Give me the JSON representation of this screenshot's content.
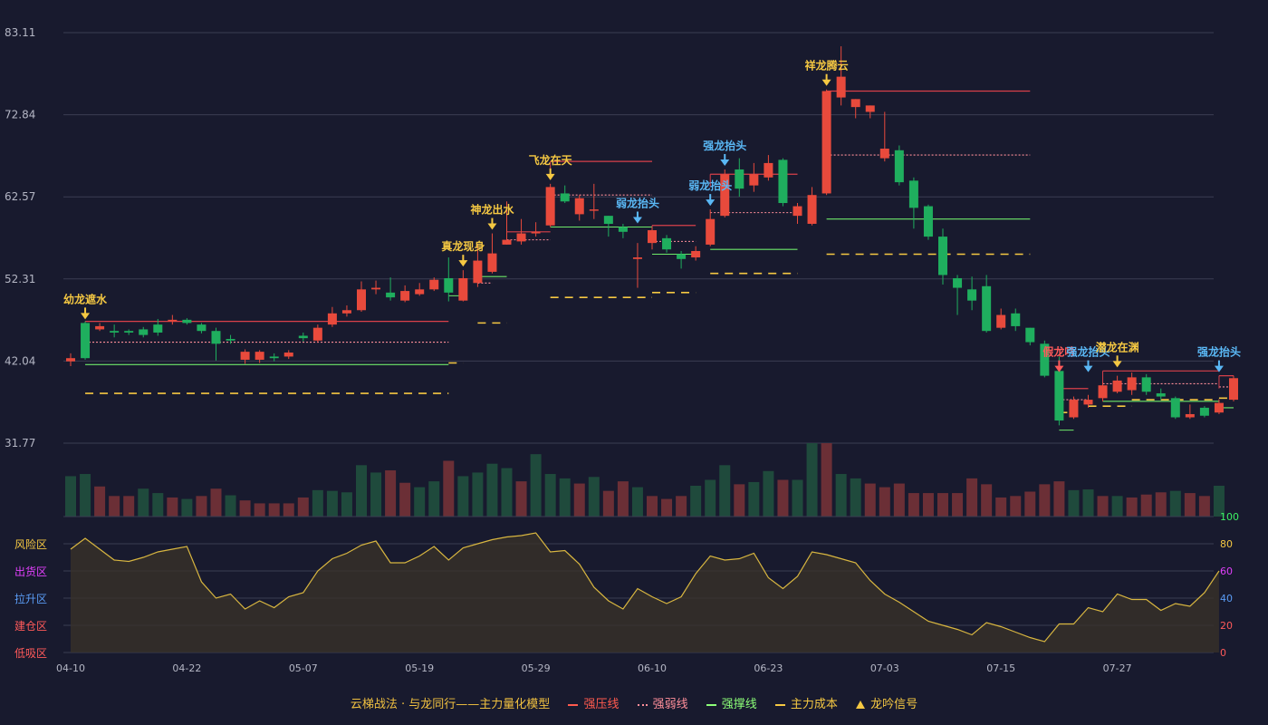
{
  "chart_data": [
    {
      "type": "candlestick",
      "ylim": [
        31.77,
        83.11
      ],
      "y_ticks": [
        "83.11",
        "72.84",
        "62.57",
        "52.31",
        "42.04",
        "31.77"
      ],
      "x_ticks": [
        {
          "index": 0,
          "label": "04-10"
        },
        {
          "index": 8,
          "label": "04-22"
        },
        {
          "index": 16,
          "label": "05-07"
        },
        {
          "index": 24,
          "label": "05-19"
        },
        {
          "index": 32,
          "label": "05-29"
        },
        {
          "index": 40,
          "label": "06-10"
        },
        {
          "index": 48,
          "label": "06-23"
        },
        {
          "index": 56,
          "label": "07-03"
        },
        {
          "index": 64,
          "label": "07-15"
        },
        {
          "index": 72,
          "label": "07-27"
        }
      ],
      "candles": [
        [
          42.0,
          42.4,
          41.4,
          43.0
        ],
        [
          46.8,
          42.4,
          42.2,
          47.0
        ],
        [
          46.0,
          46.4,
          45.8,
          46.8
        ],
        [
          45.8,
          45.6,
          45.0,
          46.6
        ],
        [
          45.8,
          45.6,
          45.3,
          46.0
        ],
        [
          46.0,
          45.3,
          45.0,
          46.3
        ],
        [
          46.6,
          45.6,
          45.2,
          47.3
        ],
        [
          47.0,
          47.2,
          46.6,
          47.8
        ],
        [
          47.2,
          46.8,
          46.6,
          47.4
        ],
        [
          46.6,
          45.8,
          45.5,
          46.8
        ],
        [
          45.8,
          44.2,
          42.1,
          46.2
        ],
        [
          44.8,
          44.6,
          44.2,
          45.3
        ],
        [
          42.2,
          43.2,
          41.7,
          43.5
        ],
        [
          42.2,
          43.2,
          41.8,
          43.4
        ],
        [
          42.6,
          42.4,
          42.0,
          43.0
        ],
        [
          42.6,
          43.1,
          42.3,
          43.4
        ],
        [
          45.2,
          44.9,
          44.5,
          45.6
        ],
        [
          44.6,
          46.2,
          44.4,
          46.6
        ],
        [
          46.6,
          48.0,
          46.3,
          48.8
        ],
        [
          48.0,
          48.4,
          47.6,
          49.0
        ],
        [
          48.4,
          51.0,
          48.2,
          52.0
        ],
        [
          51.0,
          51.2,
          50.4,
          52.1
        ],
        [
          50.6,
          50.0,
          49.6,
          52.5
        ],
        [
          49.6,
          50.8,
          49.4,
          51.5
        ],
        [
          50.4,
          51.0,
          50.2,
          51.8
        ],
        [
          51.0,
          52.2,
          50.8,
          52.5
        ],
        [
          52.4,
          50.6,
          49.5,
          55.0
        ],
        [
          49.6,
          52.4,
          49.5,
          53.4
        ],
        [
          51.8,
          54.6,
          51.3,
          56.6
        ],
        [
          53.2,
          55.5,
          53.0,
          58.0
        ],
        [
          56.6,
          57.2,
          56.6,
          62.0
        ],
        [
          57.0,
          58.0,
          56.6,
          59.8
        ],
        [
          58.0,
          58.2,
          57.6,
          59.4
        ],
        [
          59.0,
          63.8,
          58.8,
          64.2
        ],
        [
          63.0,
          62.0,
          61.8,
          64.0
        ],
        [
          60.4,
          62.4,
          59.6,
          62.8
        ],
        [
          61.0,
          61.0,
          59.8,
          64.2
        ],
        [
          60.2,
          59.2,
          57.6,
          60.2
        ],
        [
          58.8,
          58.2,
          57.4,
          59.2
        ],
        [
          54.8,
          55.0,
          51.2,
          56.8
        ],
        [
          56.8,
          58.4,
          56.0,
          58.8
        ],
        [
          57.4,
          56.0,
          55.6,
          57.8
        ],
        [
          55.4,
          54.8,
          53.6,
          55.8
        ],
        [
          55.0,
          55.8,
          54.6,
          56.4
        ],
        [
          56.6,
          59.8,
          56.4,
          61.0
        ],
        [
          60.2,
          65.4,
          60.0,
          66.0
        ],
        [
          66.0,
          63.6,
          62.6,
          67.4
        ],
        [
          64.0,
          65.4,
          63.2,
          66.8
        ],
        [
          65.0,
          66.8,
          64.6,
          67.8
        ],
        [
          67.2,
          61.8,
          61.4,
          67.4
        ],
        [
          60.2,
          61.4,
          59.2,
          61.8
        ],
        [
          59.2,
          62.8,
          59.0,
          63.8
        ],
        [
          63.0,
          75.8,
          62.8,
          76.0
        ],
        [
          75.0,
          77.6,
          74.0,
          81.4
        ],
        [
          73.8,
          74.8,
          72.4,
          74.8
        ],
        [
          73.2,
          74.0,
          72.4,
          74.0
        ],
        [
          67.4,
          68.6,
          67.0,
          73.2
        ],
        [
          68.4,
          64.4,
          64.0,
          69.0
        ],
        [
          64.6,
          61.2,
          58.6,
          65.0
        ],
        [
          61.4,
          57.6,
          57.2,
          61.6
        ],
        [
          57.6,
          52.8,
          51.6,
          58.6
        ],
        [
          52.4,
          51.2,
          47.8,
          52.8
        ],
        [
          51.0,
          49.6,
          48.4,
          52.6
        ],
        [
          51.4,
          45.8,
          45.6,
          52.8
        ],
        [
          46.2,
          47.8,
          46.0,
          48.6
        ],
        [
          48.0,
          46.4,
          45.8,
          48.6
        ],
        [
          46.2,
          44.4,
          44.0,
          46.2
        ],
        [
          44.2,
          40.2,
          40.0,
          44.6
        ],
        [
          40.8,
          34.6,
          34.0,
          42.6
        ],
        [
          35.0,
          37.2,
          34.8,
          37.6
        ],
        [
          36.6,
          37.2,
          36.2,
          37.8
        ],
        [
          37.4,
          39.0,
          37.0,
          39.4
        ],
        [
          38.2,
          39.6,
          38.0,
          40.2
        ],
        [
          38.4,
          40.0,
          37.8,
          40.6
        ],
        [
          40.0,
          38.2,
          37.8,
          40.4
        ],
        [
          38.0,
          37.6,
          37.2,
          38.6
        ],
        [
          37.4,
          35.0,
          34.8,
          37.6
        ],
        [
          35.0,
          35.4,
          34.8,
          36.6
        ],
        [
          36.2,
          35.2,
          35.0,
          36.4
        ],
        [
          35.6,
          36.8,
          35.4,
          37.2
        ],
        [
          37.2,
          39.9,
          37.0,
          40.2
        ]
      ],
      "volume": [
        [
          0.55,
          "down"
        ],
        [
          0.58,
          "down"
        ],
        [
          0.41,
          "up"
        ],
        [
          0.28,
          "up"
        ],
        [
          0.28,
          "up"
        ],
        [
          0.38,
          "down"
        ],
        [
          0.32,
          "down"
        ],
        [
          0.26,
          "up"
        ],
        [
          0.24,
          "down"
        ],
        [
          0.28,
          "up"
        ],
        [
          0.38,
          "up"
        ],
        [
          0.29,
          "down"
        ],
        [
          0.22,
          "up"
        ],
        [
          0.18,
          "up"
        ],
        [
          0.18,
          "up"
        ],
        [
          0.18,
          "up"
        ],
        [
          0.26,
          "up"
        ],
        [
          0.36,
          "down"
        ],
        [
          0.35,
          "down"
        ],
        [
          0.33,
          "down"
        ],
        [
          0.7,
          "down"
        ],
        [
          0.6,
          "down"
        ],
        [
          0.63,
          "up"
        ],
        [
          0.46,
          "up"
        ],
        [
          0.4,
          "down"
        ],
        [
          0.48,
          "down"
        ],
        [
          0.76,
          "up"
        ],
        [
          0.55,
          "down"
        ],
        [
          0.6,
          "down"
        ],
        [
          0.72,
          "down"
        ],
        [
          0.66,
          "down"
        ],
        [
          0.48,
          "up"
        ],
        [
          0.85,
          "down"
        ],
        [
          0.58,
          "down"
        ],
        [
          0.52,
          "down"
        ],
        [
          0.45,
          "up"
        ],
        [
          0.54,
          "down"
        ],
        [
          0.35,
          "up"
        ],
        [
          0.48,
          "up"
        ],
        [
          0.4,
          "down"
        ],
        [
          0.28,
          "up"
        ],
        [
          0.24,
          "up"
        ],
        [
          0.28,
          "up"
        ],
        [
          0.42,
          "down"
        ],
        [
          0.5,
          "down"
        ],
        [
          0.7,
          "down"
        ],
        [
          0.44,
          "up"
        ],
        [
          0.47,
          "down"
        ],
        [
          0.62,
          "down"
        ],
        [
          0.5,
          "up"
        ],
        [
          0.5,
          "down"
        ],
        [
          1.0,
          "down"
        ],
        [
          1.0,
          "up"
        ],
        [
          0.58,
          "down"
        ],
        [
          0.52,
          "down"
        ],
        [
          0.45,
          "up"
        ],
        [
          0.4,
          "up"
        ],
        [
          0.45,
          "up"
        ],
        [
          0.32,
          "up"
        ],
        [
          0.32,
          "up"
        ],
        [
          0.32,
          "up"
        ],
        [
          0.32,
          "up"
        ],
        [
          0.52,
          "up"
        ],
        [
          0.44,
          "up"
        ],
        [
          0.26,
          "up"
        ],
        [
          0.28,
          "up"
        ],
        [
          0.34,
          "up"
        ],
        [
          0.44,
          "up"
        ],
        [
          0.48,
          "up"
        ],
        [
          0.36,
          "down"
        ],
        [
          0.37,
          "down"
        ],
        [
          0.28,
          "up"
        ],
        [
          0.28,
          "down"
        ],
        [
          0.26,
          "up"
        ],
        [
          0.3,
          "up"
        ],
        [
          0.33,
          "up"
        ],
        [
          0.35,
          "down"
        ],
        [
          0.32,
          "up"
        ],
        [
          0.28,
          "up"
        ],
        [
          0.42,
          "down"
        ]
      ],
      "wave": [
        76,
        84,
        76,
        68,
        67,
        70,
        74,
        76,
        78,
        52,
        40,
        43,
        32,
        38,
        33,
        41,
        44,
        60,
        69,
        73,
        79,
        82,
        66,
        66,
        71,
        78,
        68,
        77,
        80,
        83,
        85,
        86,
        88,
        74,
        75,
        65,
        48,
        38,
        32,
        47,
        41,
        36,
        41,
        58,
        71,
        68,
        69,
        73,
        55,
        47,
        56,
        74,
        72,
        69,
        66,
        53,
        43,
        37,
        30,
        23,
        20,
        17,
        13,
        22,
        19,
        15,
        11,
        8,
        21,
        21,
        33,
        30,
        43,
        39,
        39,
        31,
        36,
        34,
        44,
        60
      ],
      "wave_axis": [
        "100",
        "80",
        "60",
        "40",
        "20",
        "0"
      ],
      "zones": [
        "风险区",
        "出货区",
        "拉升区",
        "建仓区",
        "低吸区"
      ],
      "signals": [
        {
          "i": 1,
          "price": 46.8,
          "label": "幼龙遮水",
          "kind": "gold"
        },
        {
          "i": 27,
          "price": 53.4,
          "label": "真龙现身",
          "kind": "gold"
        },
        {
          "i": 29,
          "price": 58.0,
          "label": "神龙出水",
          "kind": "gold"
        },
        {
          "i": 33,
          "price": 64.2,
          "label": "飞龙在天",
          "kind": "gold"
        },
        {
          "i": 39,
          "price": 58.8,
          "label": "弱龙抬头",
          "kind": "blue"
        },
        {
          "i": 44,
          "price": 61.0,
          "label": "弱龙抬头",
          "kind": "blue"
        },
        {
          "i": 45,
          "price": 66.0,
          "label": "强龙抬头",
          "kind": "blue"
        },
        {
          "i": 52,
          "price": 76.0,
          "label": "祥龙腾云",
          "kind": "gold"
        },
        {
          "i": 68,
          "price": 40.2,
          "label": "假龙吟",
          "kind": "red"
        },
        {
          "i": 70,
          "price": 40.2,
          "label": "强龙抬头",
          "kind": "blue"
        },
        {
          "i": 72,
          "price": 40.8,
          "label": "潜龙在渊",
          "kind": "gold"
        },
        {
          "i": 79,
          "price": 40.2,
          "label": "强龙抬头",
          "kind": "blue"
        }
      ],
      "pressure": [
        [
          1,
          26,
          47.0
        ],
        [
          30,
          33,
          58.2
        ],
        [
          33,
          40,
          67.0
        ],
        [
          40,
          43,
          59.0
        ],
        [
          44,
          50,
          65.4
        ],
        [
          52,
          66,
          75.8
        ],
        [
          68,
          70,
          38.6
        ],
        [
          71,
          79,
          40.8
        ],
        [
          79,
          80,
          40.2
        ]
      ],
      "weak": [
        [
          1,
          26,
          44.4
        ],
        [
          28,
          29,
          51.8
        ],
        [
          30,
          33,
          57.2
        ],
        [
          33,
          40,
          62.8
        ],
        [
          40,
          43,
          57.0
        ],
        [
          44,
          50,
          60.6
        ],
        [
          52,
          66,
          67.8
        ],
        [
          68,
          70,
          37.2
        ],
        [
          71,
          79,
          39.2
        ],
        [
          79,
          80,
          38.8
        ]
      ],
      "support": [
        [
          1,
          26,
          41.6
        ],
        [
          26,
          27,
          50.2
        ],
        [
          28,
          30,
          52.6
        ],
        [
          33,
          40,
          58.8
        ],
        [
          40,
          43,
          55.4
        ],
        [
          44,
          50,
          56.0
        ],
        [
          52,
          66,
          59.8
        ],
        [
          68,
          69,
          33.4
        ],
        [
          71,
          79,
          37.0
        ],
        [
          79,
          80,
          36.2
        ]
      ],
      "cost": [
        [
          1,
          26,
          38.0
        ],
        [
          26,
          27,
          41.8
        ],
        [
          28,
          30,
          46.8
        ],
        [
          33,
          40,
          50.0
        ],
        [
          40,
          43,
          50.6
        ],
        [
          44,
          50,
          53.0
        ],
        [
          52,
          66,
          55.4
        ],
        [
          68,
          69,
          35.6
        ],
        [
          70,
          73,
          36.4
        ],
        [
          73,
          79,
          37.2
        ],
        [
          79,
          80,
          37.4
        ]
      ]
    }
  ],
  "legend": {
    "title": "云梯战法 · 与龙同行——主力量化模型",
    "items": [
      {
        "label": "强压线",
        "color": "#ff5a4e",
        "style": "solid"
      },
      {
        "label": "强弱线",
        "color": "#ff8f9a",
        "style": "dotted"
      },
      {
        "label": "强撑线",
        "color": "#8cff78",
        "style": "solid"
      },
      {
        "label": "主力成本",
        "color": "#f5c842",
        "style": "dashed"
      },
      {
        "label": "龙吟信号",
        "color": "#f5c842",
        "style": "triangle"
      }
    ]
  },
  "colors": {
    "up": "#e84a3c",
    "down": "#1fae5e",
    "vol_up": "#6b2f36",
    "vol_down": "#1f4a3c",
    "gold": "#f5c842",
    "blue": "#5ab8f5",
    "red": "#ff5a5a",
    "grid": "#3a3d52",
    "axis_text": "#b4b6c4",
    "wave": "#d8b640",
    "zone_colors": [
      "#f5c842",
      "#e040fb",
      "#5a9cf5",
      "#ff5a5a",
      "#ff5a5a"
    ],
    "wave_axis_colors": [
      "#3cf064",
      "#f5c842",
      "#e040fb",
      "#5a9cf5",
      "#ff5a5a",
      "#ff5a5a"
    ]
  }
}
